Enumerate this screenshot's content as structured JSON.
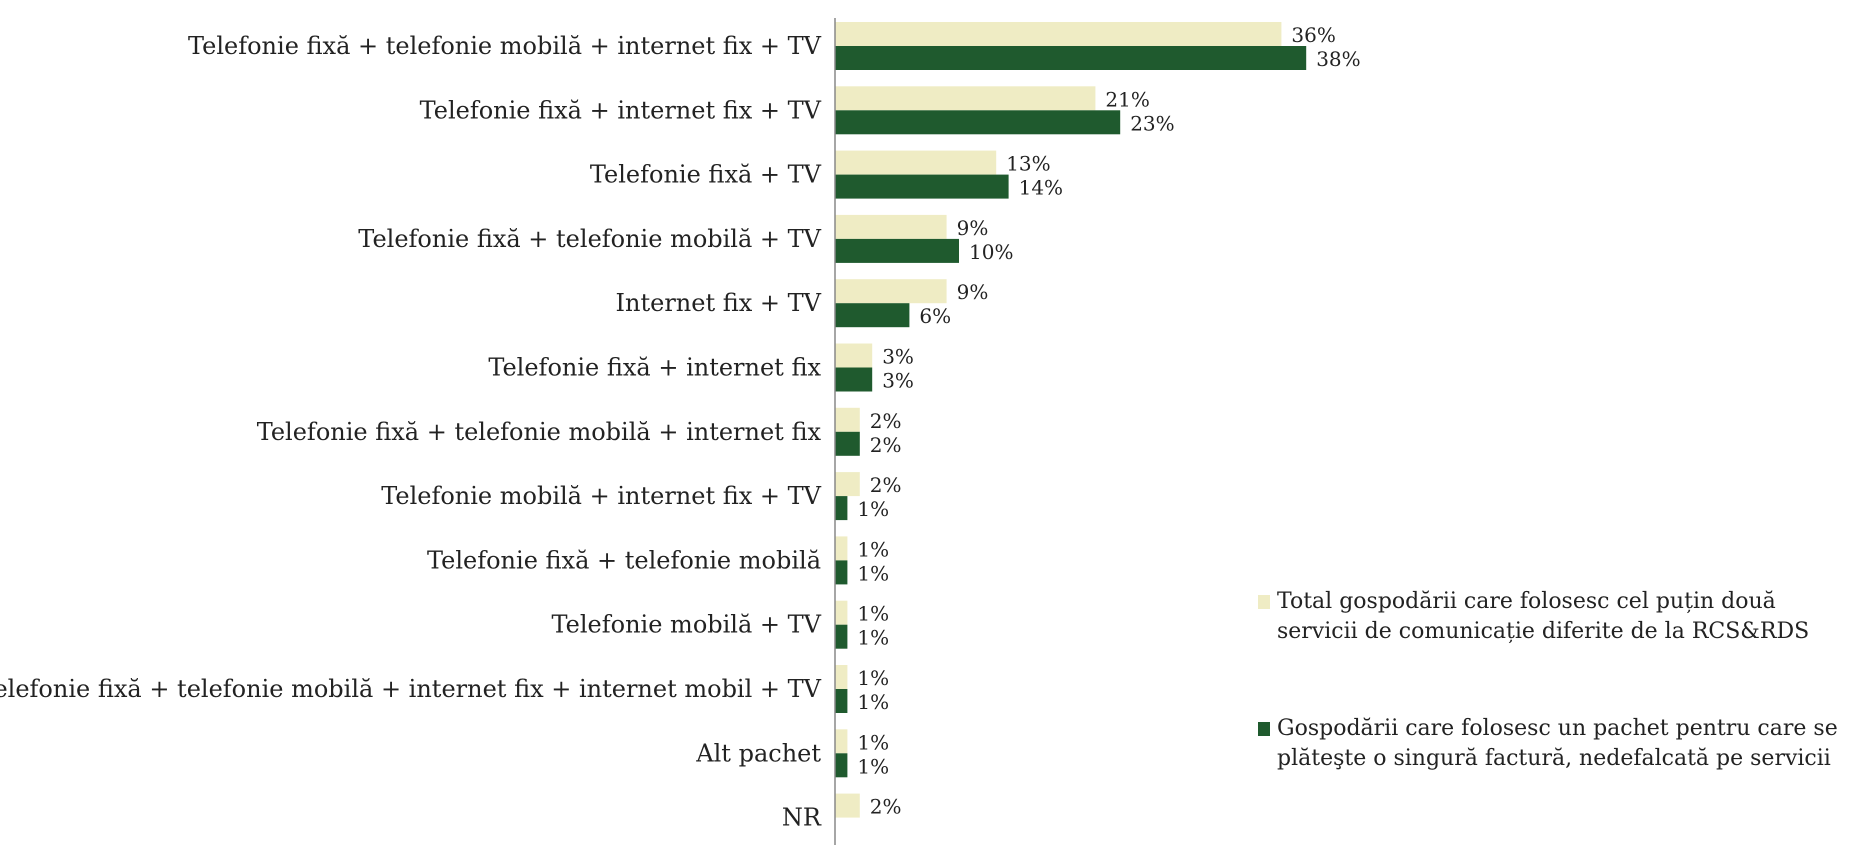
{
  "chart_data": {
    "type": "bar",
    "orientation": "horizontal",
    "categories": [
      "Telefonie fixă + telefonie mobilă + internet fix + TV",
      "Telefonie fixă + internet fix + TV",
      "Telefonie fixă + TV",
      "Telefonie fixă + telefonie mobilă + TV",
      "Internet fix + TV",
      "Telefonie fixă + internet fix",
      "Telefonie fixă + telefonie mobilă + internet fix",
      "Telefonie mobilă + internet fix + TV",
      "Telefonie fixă + telefonie mobilă",
      "Telefonie mobilă + TV",
      "Telefonie fixă + telefonie mobilă + internet fix + internet mobil + TV",
      "Alt pachet",
      "NR"
    ],
    "series": [
      {
        "name": "Total gospodării care folosesc cel puțin două servicii de comunicație diferite de la RCS&RDS",
        "color": "#efecc4",
        "values": [
          36,
          21,
          13,
          9,
          9,
          3,
          2,
          2,
          1,
          1,
          1,
          1,
          2
        ],
        "labels": [
          "36%",
          "21%",
          "13%",
          "9%",
          "9%",
          "3%",
          "2%",
          "2%",
          "1%",
          "1%",
          "1%",
          "1%",
          "2%"
        ]
      },
      {
        "name": "Gospodării care folosesc un pachet pentru care se plăteşte o singură factură, nedefalcată pe servicii",
        "color": "#1f5a2e",
        "values": [
          38,
          23,
          14,
          10,
          6,
          3,
          2,
          1,
          1,
          1,
          1,
          1,
          null
        ],
        "labels": [
          "38%",
          "23%",
          "14%",
          "10%",
          "6%",
          "3%",
          "2%",
          "1%",
          "1%",
          "1%",
          "1%",
          "1%",
          ""
        ]
      }
    ],
    "xlim": [
      0,
      38
    ],
    "grid": false,
    "legend_position": "right"
  }
}
